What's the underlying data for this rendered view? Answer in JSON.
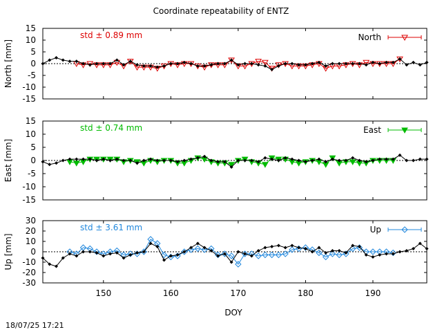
{
  "title": "Coordinate repeatability of ENTZ",
  "timestamp": "18/07/25 17:21",
  "chart_data": {
    "type": "line",
    "xlabel": "DOY",
    "xlim": [
      141,
      198
    ],
    "xticks": [
      150,
      160,
      170,
      180,
      190
    ],
    "panels": [
      {
        "id": "north",
        "ylabel": "North [mm]",
        "ylim": [
          -15,
          15
        ],
        "yticks": [
          15,
          10,
          5,
          0,
          -5,
          -10,
          -15
        ],
        "std_label": "std ± 0.89 mm",
        "series_name": "North",
        "color": "#dd0000",
        "marker": "triangle-down-open",
        "black_series": {
          "x": [
            141,
            142,
            143,
            144,
            145,
            146,
            147,
            148,
            149,
            150,
            151,
            152,
            153,
            154,
            155,
            156,
            157,
            158,
            159,
            160,
            161,
            162,
            163,
            164,
            165,
            166,
            167,
            168,
            169,
            170,
            171,
            172,
            173,
            174,
            175,
            176,
            177,
            178,
            179,
            180,
            181,
            182,
            183,
            184,
            185,
            186,
            187,
            188,
            189,
            190,
            191,
            192,
            193,
            194,
            195,
            196,
            197,
            198
          ],
          "y": [
            0,
            1.5,
            2.5,
            1.5,
            1,
            1,
            0,
            -0.5,
            0,
            0,
            0,
            1.5,
            -0.5,
            1,
            -0.5,
            -1,
            -1,
            -1.5,
            -1,
            0,
            0,
            0.5,
            0,
            -1,
            -1,
            -0.5,
            0,
            0,
            1.5,
            -0.5,
            0,
            0,
            -0.5,
            -1,
            -2.5,
            -1,
            0,
            0,
            -0.5,
            -0.5,
            0,
            0.5,
            -1,
            0,
            0,
            0,
            0,
            0,
            -0.5,
            0.5,
            0,
            0.5,
            0.5,
            2,
            -0.5,
            0.5,
            -0.5,
            0.5
          ]
        },
        "colored_series": {
          "x": [
            146,
            147,
            148,
            149,
            150,
            151,
            152,
            153,
            154,
            155,
            156,
            157,
            158,
            159,
            160,
            161,
            162,
            163,
            164,
            165,
            166,
            167,
            168,
            169,
            170,
            171,
            172,
            173,
            174,
            175,
            176,
            177,
            178,
            179,
            180,
            181,
            182,
            183,
            184,
            185,
            186,
            187,
            188,
            189,
            190,
            191,
            192,
            193,
            194
          ],
          "y": [
            0,
            -0.5,
            0,
            -0.5,
            -0.5,
            -0.5,
            0.5,
            -1,
            1,
            -1.5,
            -1.5,
            -1.5,
            -2,
            -1,
            0,
            -0.5,
            0,
            0,
            -1,
            -1.5,
            -0.5,
            -0.5,
            -0.5,
            1.5,
            -1,
            -1,
            0,
            1,
            0.5,
            -2,
            -0.5,
            0,
            -1,
            -1,
            -1,
            -0.5,
            0,
            -2,
            -1,
            -1,
            -0.5,
            0,
            -0.5,
            0.5,
            0,
            0,
            0,
            0,
            2
          ]
        }
      },
      {
        "id": "east",
        "ylabel": "East [mm]",
        "ylim": [
          -15,
          15
        ],
        "yticks": [
          15,
          10,
          5,
          0,
          -5,
          -10,
          -15
        ],
        "std_label": "std ± 0.74 mm",
        "series_name": "East",
        "color": "#00bb00",
        "marker": "triangle-down-filled",
        "black_series": {
          "x": [
            141,
            142,
            143,
            144,
            145,
            146,
            147,
            148,
            149,
            150,
            151,
            152,
            153,
            154,
            155,
            156,
            157,
            158,
            159,
            160,
            161,
            162,
            163,
            164,
            165,
            166,
            167,
            168,
            169,
            170,
            171,
            172,
            173,
            174,
            175,
            176,
            177,
            178,
            179,
            180,
            181,
            182,
            183,
            184,
            185,
            186,
            187,
            188,
            189,
            190,
            191,
            192,
            193,
            194,
            195,
            196,
            197,
            198
          ],
          "y": [
            -0.5,
            -1.5,
            -1,
            0,
            0.5,
            0.5,
            0.5,
            0.5,
            0,
            0.5,
            0,
            0.5,
            0,
            0,
            -1,
            0,
            0.5,
            0,
            0,
            0,
            -0.5,
            0,
            0.5,
            1,
            1.5,
            0,
            -0.5,
            -0.5,
            -2.5,
            0,
            0,
            0,
            -0.5,
            1,
            0.5,
            0,
            1,
            0.5,
            0,
            -0.5,
            0,
            0.5,
            -0.5,
            0.5,
            0,
            0,
            1,
            0,
            -0.5,
            0,
            0.5,
            0.5,
            0.5,
            2,
            0,
            0,
            0.5,
            0.5
          ]
        },
        "colored_series": {
          "x": [
            145,
            146,
            147,
            148,
            149,
            150,
            151,
            152,
            153,
            154,
            155,
            156,
            157,
            158,
            159,
            160,
            161,
            162,
            163,
            164,
            165,
            166,
            167,
            168,
            169,
            170,
            171,
            172,
            173,
            174,
            175,
            176,
            177,
            178,
            179,
            180,
            181,
            182,
            183,
            184,
            185,
            186,
            187,
            188,
            189,
            190,
            191,
            192,
            193
          ],
          "y": [
            -0.5,
            -1,
            -0.5,
            0.5,
            0.5,
            0.5,
            0.5,
            0.5,
            -0.5,
            0,
            -0.5,
            -1,
            0,
            -0.5,
            0,
            0,
            -1,
            -1,
            0,
            1,
            0.5,
            -0.5,
            -1,
            -1,
            -1.5,
            0,
            0.5,
            -0.5,
            -1,
            -1.5,
            1,
            0.5,
            0.5,
            -0.5,
            -1,
            -0.5,
            0,
            -0.5,
            -1.5,
            1,
            -1,
            -0.5,
            -0.5,
            -1,
            -1,
            0,
            0,
            0,
            0
          ]
        }
      },
      {
        "id": "up",
        "ylabel": "Up [mm]",
        "ylim": [
          -30,
          30
        ],
        "yticks": [
          30,
          20,
          10,
          0,
          -10,
          -20,
          -30
        ],
        "std_label": "std ± 3.61 mm",
        "series_name": "Up",
        "color": "#2288dd",
        "marker": "diamond-open",
        "black_series": {
          "x": [
            141,
            142,
            143,
            144,
            145,
            146,
            147,
            148,
            149,
            150,
            151,
            152,
            153,
            154,
            155,
            156,
            157,
            158,
            159,
            160,
            161,
            162,
            163,
            164,
            165,
            166,
            167,
            168,
            169,
            170,
            171,
            172,
            173,
            174,
            175,
            176,
            177,
            178,
            179,
            180,
            181,
            182,
            183,
            184,
            185,
            186,
            187,
            188,
            189,
            190,
            191,
            192,
            193,
            194,
            195,
            196,
            197,
            198
          ],
          "y": [
            -6,
            -12,
            -14,
            -6,
            -2,
            -4,
            0,
            0,
            -1,
            -4,
            -2,
            -1,
            -6,
            -3,
            -1,
            0,
            8,
            5,
            -8,
            -4,
            -3,
            0,
            4,
            8,
            4,
            1,
            -4,
            -2,
            -10,
            0,
            -2,
            -4,
            1,
            4,
            5,
            6,
            4,
            6,
            4,
            3,
            0,
            4,
            -1,
            1,
            1,
            -1,
            6,
            5,
            -3,
            -5,
            -3,
            -2,
            -2,
            0,
            1,
            3,
            8,
            3
          ]
        },
        "colored_series": {
          "x": [
            145,
            146,
            147,
            148,
            149,
            150,
            151,
            152,
            153,
            154,
            155,
            156,
            157,
            158,
            159,
            160,
            161,
            162,
            163,
            164,
            165,
            166,
            167,
            168,
            169,
            170,
            171,
            172,
            173,
            174,
            175,
            176,
            177,
            178,
            179,
            180,
            181,
            182,
            183,
            184,
            185,
            186,
            187,
            188,
            189,
            190,
            191,
            192,
            193
          ],
          "y": [
            0,
            -2,
            4,
            3,
            0,
            -2,
            0,
            1,
            -3,
            -2,
            -2,
            0,
            12,
            8,
            -3,
            -5,
            -4,
            0,
            2,
            3,
            2,
            3,
            -3,
            -2,
            -4,
            -12,
            -2,
            -2,
            -4,
            -3,
            -3,
            -3,
            -2,
            2,
            3,
            4,
            2,
            -1,
            -5,
            -2,
            -3,
            -2,
            3,
            4,
            0,
            0,
            0,
            0,
            -1
          ]
        }
      }
    ]
  }
}
